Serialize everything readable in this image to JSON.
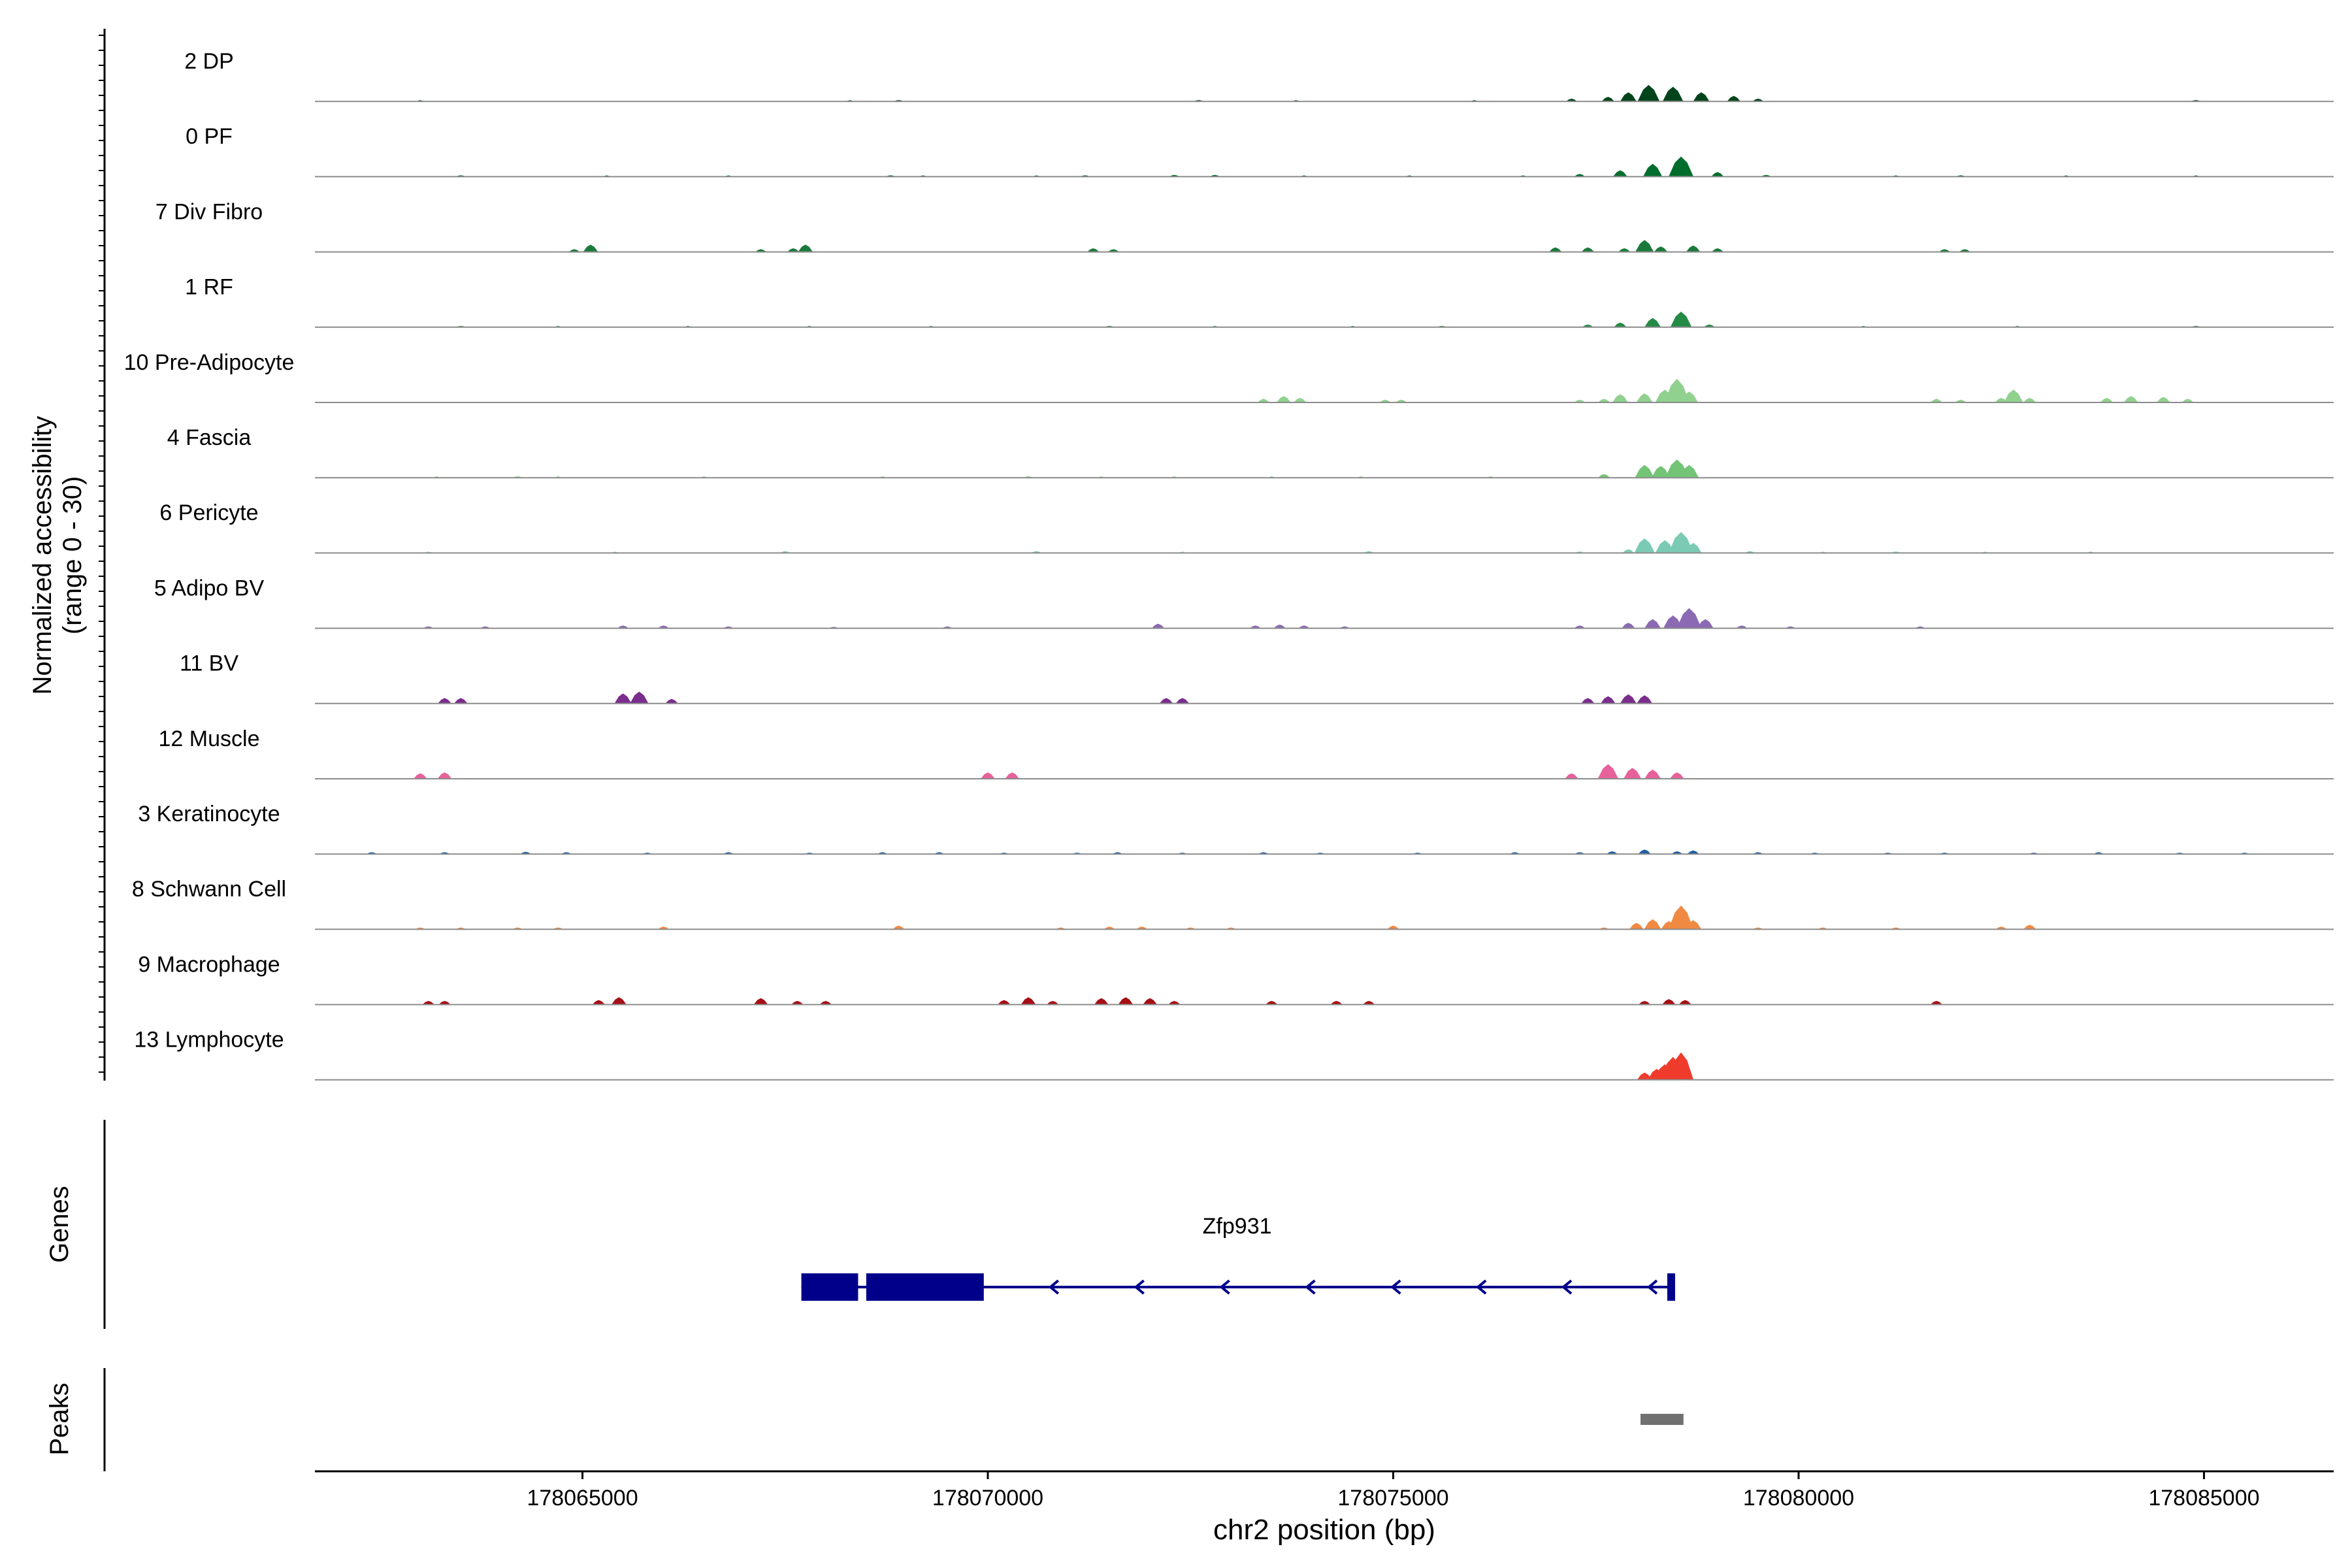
{
  "chart_data": {
    "type": "area",
    "ylabel": "Normalized accessibility\n(range 0 - 30)",
    "xlabel": "chr2 position (bp)",
    "yrange": [
      0,
      30
    ],
    "xlim": [
      178061700,
      178086600
    ],
    "x_ticks": [
      178065000,
      178070000,
      178075000,
      178080000,
      178085000
    ],
    "x_tick_labels": [
      "178065000",
      "178070000",
      "178075000",
      "178080000",
      "178085000"
    ],
    "tracks": [
      {
        "name": "2 DP",
        "color": "#00441b",
        "peaks": [
          [
            178063000,
            1
          ],
          [
            178068300,
            1
          ],
          [
            178068900,
            1.5
          ],
          [
            178072600,
            1.5
          ],
          [
            178073800,
            1
          ],
          [
            178076000,
            1
          ],
          [
            178077200,
            3
          ],
          [
            178077650,
            5
          ],
          [
            178077900,
            10
          ],
          [
            178078150,
            18
          ],
          [
            178078450,
            16
          ],
          [
            178078800,
            10
          ],
          [
            178079200,
            6
          ],
          [
            178079500,
            3
          ],
          [
            178084900,
            1.5
          ]
        ]
      },
      {
        "name": "0 PF",
        "color": "#006d2c",
        "peaks": [
          [
            178063500,
            1.5
          ],
          [
            178065300,
            1
          ],
          [
            178066800,
            1
          ],
          [
            178068800,
            1.5
          ],
          [
            178069200,
            1
          ],
          [
            178070600,
            1
          ],
          [
            178071200,
            1.5
          ],
          [
            178072300,
            2
          ],
          [
            178072800,
            2
          ],
          [
            178073900,
            1
          ],
          [
            178075200,
            1
          ],
          [
            178076600,
            1
          ],
          [
            178077300,
            3
          ],
          [
            178077800,
            7
          ],
          [
            178078200,
            14
          ],
          [
            178078550,
            22
          ],
          [
            178079000,
            5
          ],
          [
            178079600,
            2
          ],
          [
            178081200,
            1
          ],
          [
            178082000,
            1.5
          ],
          [
            178083300,
            1
          ],
          [
            178084900,
            1
          ]
        ]
      },
      {
        "name": "7 Div Fibro",
        "color": "#1a7a3a",
        "peaks": [
          [
            178064900,
            3
          ],
          [
            178065100,
            8
          ],
          [
            178067200,
            3
          ],
          [
            178067600,
            4
          ],
          [
            178067750,
            8
          ],
          [
            178071300,
            4
          ],
          [
            178071550,
            3
          ],
          [
            178077000,
            5
          ],
          [
            178077400,
            5
          ],
          [
            178077850,
            4
          ],
          [
            178078100,
            13
          ],
          [
            178078300,
            6
          ],
          [
            178078700,
            7
          ],
          [
            178079000,
            4
          ],
          [
            178081800,
            3
          ],
          [
            178082050,
            3
          ]
        ]
      },
      {
        "name": "1 RF",
        "color": "#238b45",
        "peaks": [
          [
            178063500,
            1.5
          ],
          [
            178064700,
            1
          ],
          [
            178066300,
            1
          ],
          [
            178067800,
            1
          ],
          [
            178069300,
            1
          ],
          [
            178071500,
            1.5
          ],
          [
            178072800,
            1
          ],
          [
            178074500,
            1
          ],
          [
            178075600,
            1.5
          ],
          [
            178077400,
            3
          ],
          [
            178077800,
            5
          ],
          [
            178078200,
            10
          ],
          [
            178078550,
            17
          ],
          [
            178078900,
            3
          ],
          [
            178080800,
            1
          ],
          [
            178082700,
            1
          ],
          [
            178084900,
            1.5
          ]
        ]
      },
      {
        "name": "10 Pre-Adipocyte",
        "color": "#90d18f",
        "peaks": [
          [
            178073400,
            4
          ],
          [
            178073650,
            7
          ],
          [
            178073850,
            5
          ],
          [
            178074900,
            3
          ],
          [
            178075100,
            3
          ],
          [
            178077300,
            3
          ],
          [
            178077600,
            4
          ],
          [
            178077800,
            9
          ],
          [
            178078100,
            10
          ],
          [
            178078350,
            14
          ],
          [
            178078500,
            26
          ],
          [
            178078650,
            12
          ],
          [
            178081700,
            4
          ],
          [
            178082000,
            3
          ],
          [
            178082500,
            5
          ],
          [
            178082650,
            14
          ],
          [
            178082850,
            5
          ],
          [
            178083800,
            5
          ],
          [
            178084100,
            7
          ],
          [
            178084500,
            6
          ],
          [
            178084800,
            4
          ]
        ]
      },
      {
        "name": "4 Fascia",
        "color": "#74c476",
        "peaks": [
          [
            178063200,
            1
          ],
          [
            178064200,
            1.5
          ],
          [
            178064700,
            1
          ],
          [
            178066500,
            1
          ],
          [
            178068700,
            1
          ],
          [
            178070500,
            1.5
          ],
          [
            178071400,
            1
          ],
          [
            178072300,
            1
          ],
          [
            178073500,
            1
          ],
          [
            178074600,
            1
          ],
          [
            178076200,
            1
          ],
          [
            178077600,
            4
          ],
          [
            178078100,
            14
          ],
          [
            178078300,
            13
          ],
          [
            178078500,
            20
          ],
          [
            178078650,
            14
          ]
        ]
      },
      {
        "name": "6 Pericyte",
        "color": "#7bcbb4",
        "peaks": [
          [
            178063100,
            1
          ],
          [
            178065400,
            1
          ],
          [
            178067500,
            2
          ],
          [
            178070600,
            2
          ],
          [
            178072400,
            1
          ],
          [
            178074700,
            2
          ],
          [
            178077300,
            1.5
          ],
          [
            178077900,
            4
          ],
          [
            178078100,
            16
          ],
          [
            178078350,
            14
          ],
          [
            178078550,
            23
          ],
          [
            178078700,
            11
          ],
          [
            178079400,
            2
          ],
          [
            178080300,
            1
          ],
          [
            178081200,
            1.5
          ],
          [
            178082300,
            1
          ],
          [
            178083600,
            1
          ]
        ]
      },
      {
        "name": "5 Adipo BV",
        "color": "#8b6ab3",
        "peaks": [
          [
            178063100,
            2
          ],
          [
            178063800,
            2
          ],
          [
            178065500,
            3
          ],
          [
            178066000,
            3
          ],
          [
            178066800,
            2
          ],
          [
            178068100,
            1.5
          ],
          [
            178069500,
            2
          ],
          [
            178072100,
            5
          ],
          [
            178073300,
            3
          ],
          [
            178073600,
            4
          ],
          [
            178073900,
            3
          ],
          [
            178074400,
            2
          ],
          [
            178077300,
            3
          ],
          [
            178077900,
            6
          ],
          [
            178078200,
            10
          ],
          [
            178078450,
            14
          ],
          [
            178078650,
            22
          ],
          [
            178078850,
            10
          ],
          [
            178079300,
            3
          ],
          [
            178079900,
            2
          ],
          [
            178081500,
            2
          ]
        ]
      },
      {
        "name": "11 BV",
        "color": "#7b2d8e",
        "peaks": [
          [
            178063300,
            6
          ],
          [
            178063500,
            6
          ],
          [
            178065500,
            11
          ],
          [
            178065700,
            13
          ],
          [
            178066100,
            5
          ],
          [
            178072200,
            6
          ],
          [
            178072400,
            6
          ],
          [
            178077400,
            6
          ],
          [
            178077650,
            8
          ],
          [
            178077900,
            10
          ],
          [
            178078100,
            9
          ]
        ]
      },
      {
        "name": "12 Muscle",
        "color": "#e7619a",
        "peaks": [
          [
            178063000,
            6
          ],
          [
            178063300,
            7
          ],
          [
            178070000,
            7
          ],
          [
            178070300,
            7
          ],
          [
            178077200,
            6
          ],
          [
            178077650,
            16
          ],
          [
            178077950,
            12
          ],
          [
            178078200,
            10
          ],
          [
            178078500,
            7
          ]
        ]
      },
      {
        "name": "3 Keratinocyte",
        "color": "#1f5fa6",
        "peaks": [
          [
            178062400,
            2
          ],
          [
            178063300,
            2
          ],
          [
            178064300,
            2.5
          ],
          [
            178064800,
            2
          ],
          [
            178065800,
            1.5
          ],
          [
            178066800,
            2
          ],
          [
            178067800,
            1.5
          ],
          [
            178068700,
            2
          ],
          [
            178069400,
            2
          ],
          [
            178070200,
            1.5
          ],
          [
            178071100,
            1.5
          ],
          [
            178071600,
            2
          ],
          [
            178072400,
            1.5
          ],
          [
            178073400,
            2
          ],
          [
            178074100,
            1.5
          ],
          [
            178075300,
            1.5
          ],
          [
            178076500,
            2
          ],
          [
            178077300,
            2
          ],
          [
            178077700,
            3
          ],
          [
            178078100,
            5
          ],
          [
            178078500,
            3
          ],
          [
            178078700,
            4
          ],
          [
            178079500,
            2
          ],
          [
            178080200,
            1.5
          ],
          [
            178081100,
            1.5
          ],
          [
            178081800,
            1.5
          ],
          [
            178082900,
            1.5
          ],
          [
            178083700,
            2
          ],
          [
            178084700,
            1.5
          ],
          [
            178085500,
            1.5
          ]
        ]
      },
      {
        "name": "8 Schwann Cell",
        "color": "#f08a43",
        "peaks": [
          [
            178063000,
            2
          ],
          [
            178063500,
            2
          ],
          [
            178064200,
            2
          ],
          [
            178064700,
            2
          ],
          [
            178066000,
            3
          ],
          [
            178068900,
            4
          ],
          [
            178070900,
            2
          ],
          [
            178071500,
            3
          ],
          [
            178071900,
            3
          ],
          [
            178072500,
            2
          ],
          [
            178073000,
            2
          ],
          [
            178075000,
            4
          ],
          [
            178077600,
            2
          ],
          [
            178078000,
            7
          ],
          [
            178078200,
            11
          ],
          [
            178078400,
            9
          ],
          [
            178078550,
            26
          ],
          [
            178078700,
            10
          ],
          [
            178079500,
            2
          ],
          [
            178080300,
            2
          ],
          [
            178081200,
            2
          ],
          [
            178082500,
            3
          ],
          [
            178082850,
            5
          ]
        ]
      },
      {
        "name": "9 Macrophage",
        "color": "#a50f15",
        "peaks": [
          [
            178063100,
            4
          ],
          [
            178063300,
            4
          ],
          [
            178065200,
            5
          ],
          [
            178065450,
            8
          ],
          [
            178067200,
            7
          ],
          [
            178067650,
            4
          ],
          [
            178068000,
            4
          ],
          [
            178070200,
            5
          ],
          [
            178070500,
            8
          ],
          [
            178070800,
            4
          ],
          [
            178071400,
            7
          ],
          [
            178071700,
            8
          ],
          [
            178072000,
            7
          ],
          [
            178072300,
            4
          ],
          [
            178073500,
            4
          ],
          [
            178074300,
            4
          ],
          [
            178074700,
            4
          ],
          [
            178078100,
            4
          ],
          [
            178078400,
            6
          ],
          [
            178078600,
            5
          ],
          [
            178081700,
            4
          ]
        ]
      },
      {
        "name": "13 Lymphocyte",
        "color": "#ef3b2c",
        "peaks": [
          [
            178078100,
            8
          ],
          [
            178078250,
            12
          ],
          [
            178078350,
            17
          ],
          [
            178078450,
            25
          ],
          [
            178078550,
            30
          ]
        ]
      }
    ],
    "genes_label": "Genes",
    "gene": {
      "name": "Zfp931",
      "color": "#00008b",
      "start": 178067700,
      "end": 178078450,
      "strand": "-",
      "exons": [
        [
          178067700,
          178068400
        ],
        [
          178068500,
          178069950
        ],
        [
          178078380,
          178078450
        ]
      ]
    },
    "peaks_label": "Peaks",
    "called_peaks": [
      [
        178078050,
        178078580
      ]
    ],
    "called_peak_color": "#707070"
  }
}
